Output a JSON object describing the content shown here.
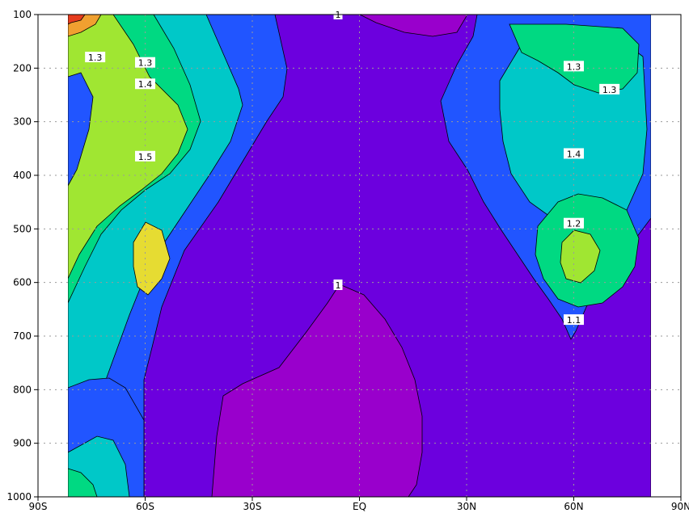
{
  "chart_data": {
    "type": "heatmap",
    "subtype": "filled-contour",
    "title": "",
    "xlabel": "",
    "ylabel": "",
    "x_ticks": [
      "90S",
      "60S",
      "30S",
      "EQ",
      "30N",
      "60N",
      "90N"
    ],
    "x_tick_values": [
      -90,
      -60,
      -30,
      0,
      30,
      60,
      90
    ],
    "y_ticks": [
      "100",
      "200",
      "300",
      "400",
      "500",
      "600",
      "700",
      "800",
      "900",
      "1000"
    ],
    "y_tick_values": [
      100,
      200,
      300,
      400,
      500,
      600,
      700,
      800,
      900,
      1000
    ],
    "xlim": [
      -90,
      90
    ],
    "ylim": [
      1000,
      100
    ],
    "y_inverted": true,
    "data_x_range": [
      -80,
      82
    ],
    "grid": true,
    "contour_levels": [
      1.0,
      1.1,
      1.2,
      1.3,
      1.4,
      1.5,
      1.6,
      1.7,
      1.8
    ],
    "level_colors": [
      "#9900cc",
      "#6c00de",
      "#2155ff",
      "#00c8c8",
      "#00d982",
      "#a0e632",
      "#e6dc32",
      "#f0a030",
      "#e63c1e"
    ],
    "contour_labels": [
      {
        "text": "1",
        "lat": -6,
        "p": 605
      },
      {
        "text": "1",
        "lat": -6,
        "p": 100
      },
      {
        "text": "1.1",
        "lat": 60,
        "p": 670
      },
      {
        "text": "1.2",
        "lat": 60,
        "p": 490
      },
      {
        "text": "1.3",
        "lat": 60,
        "p": 197
      },
      {
        "text": "1.3",
        "lat": 70,
        "p": 240
      },
      {
        "text": "1.4",
        "lat": 60,
        "p": 360
      },
      {
        "text": "1.3",
        "lat": -74,
        "p": 180
      },
      {
        "text": "1.3",
        "lat": -60,
        "p": 190
      },
      {
        "text": "1.4",
        "lat": -60,
        "p": 230
      },
      {
        "text": "1.5",
        "lat": -60,
        "p": 365
      }
    ]
  }
}
